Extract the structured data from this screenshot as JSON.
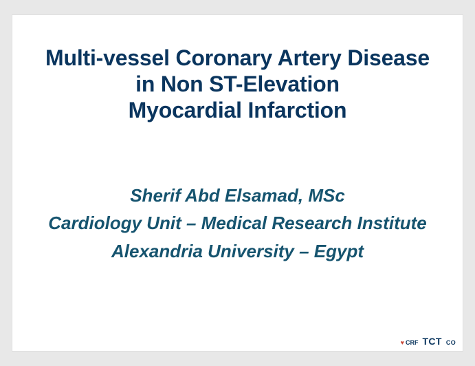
{
  "slide": {
    "title": {
      "line1": "Multi-vessel Coronary Artery Disease",
      "line2": "in Non ST-Elevation",
      "line3": "Myocardial Infarction",
      "color": "#0a355e",
      "fontsize": 32,
      "fontweight": 700
    },
    "author": {
      "name": "Sherif Abd Elsamad, MSc",
      "affiliation1": "Cardiology Unit – Medical Research Institute",
      "affiliation2": "Alexandria University – Egypt",
      "color": "#16546f",
      "fontsize": 26,
      "fontweight": 700,
      "fontstyle": "italic"
    },
    "footer": {
      "crf_label": "CRF",
      "tct_label": "TCT",
      "tct_sub": "CO",
      "bar_color": "#0a355e",
      "accent_color": "#c94a3a"
    },
    "background_color": "#ffffff",
    "outer_background_color": "#e8e8e8"
  }
}
